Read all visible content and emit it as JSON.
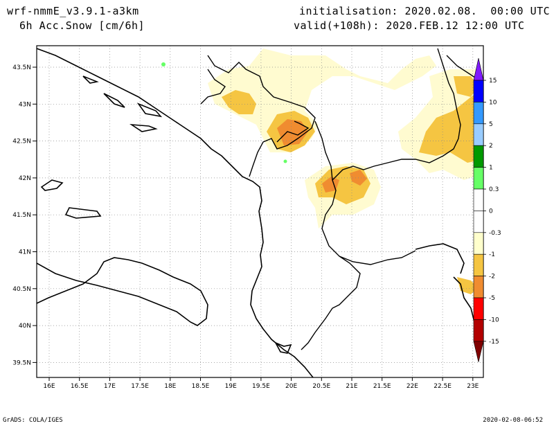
{
  "header": {
    "model": "wrf-nmmE_v3.9.1-a3km",
    "field": "6h Acc.Snow [cm/6h]",
    "init": "initialisation: 2020.02.08.  00:00 UTC",
    "valid": "valid(+108h): 2020.FEB.12 12:00 UTC"
  },
  "footer": {
    "left": "GrADS: COLA/IGES",
    "right": "2020-02-08-06:52"
  },
  "map": {
    "lat_labels": [
      "43.5N",
      "43N",
      "42.5N",
      "42N",
      "41.5N",
      "41N",
      "40.5N",
      "40N",
      "39.5N"
    ],
    "lon_labels": [
      "16E",
      "16.5E",
      "17E",
      "17.5E",
      "18E",
      "18.5E",
      "19E",
      "19.5E",
      "20E",
      "20.5E",
      "21E",
      "21.5E",
      "22E",
      "22.5E",
      "23E"
    ]
  },
  "legend": {
    "labels": [
      "15",
      "10",
      "5",
      "2",
      "1",
      "0.3",
      "0",
      "-0.3",
      "-1",
      "-2",
      "-5",
      "-10",
      "-15"
    ],
    "colors": [
      "#7f19ff",
      "#0000ff",
      "#3399ff",
      "#99ccff",
      "#009900",
      "#66ff66",
      "#ffffff",
      "#ffffff",
      "#ffffcc",
      "#f5c542",
      "#f08c30",
      "#ff0000",
      "#b30000",
      "#800000"
    ]
  }
}
